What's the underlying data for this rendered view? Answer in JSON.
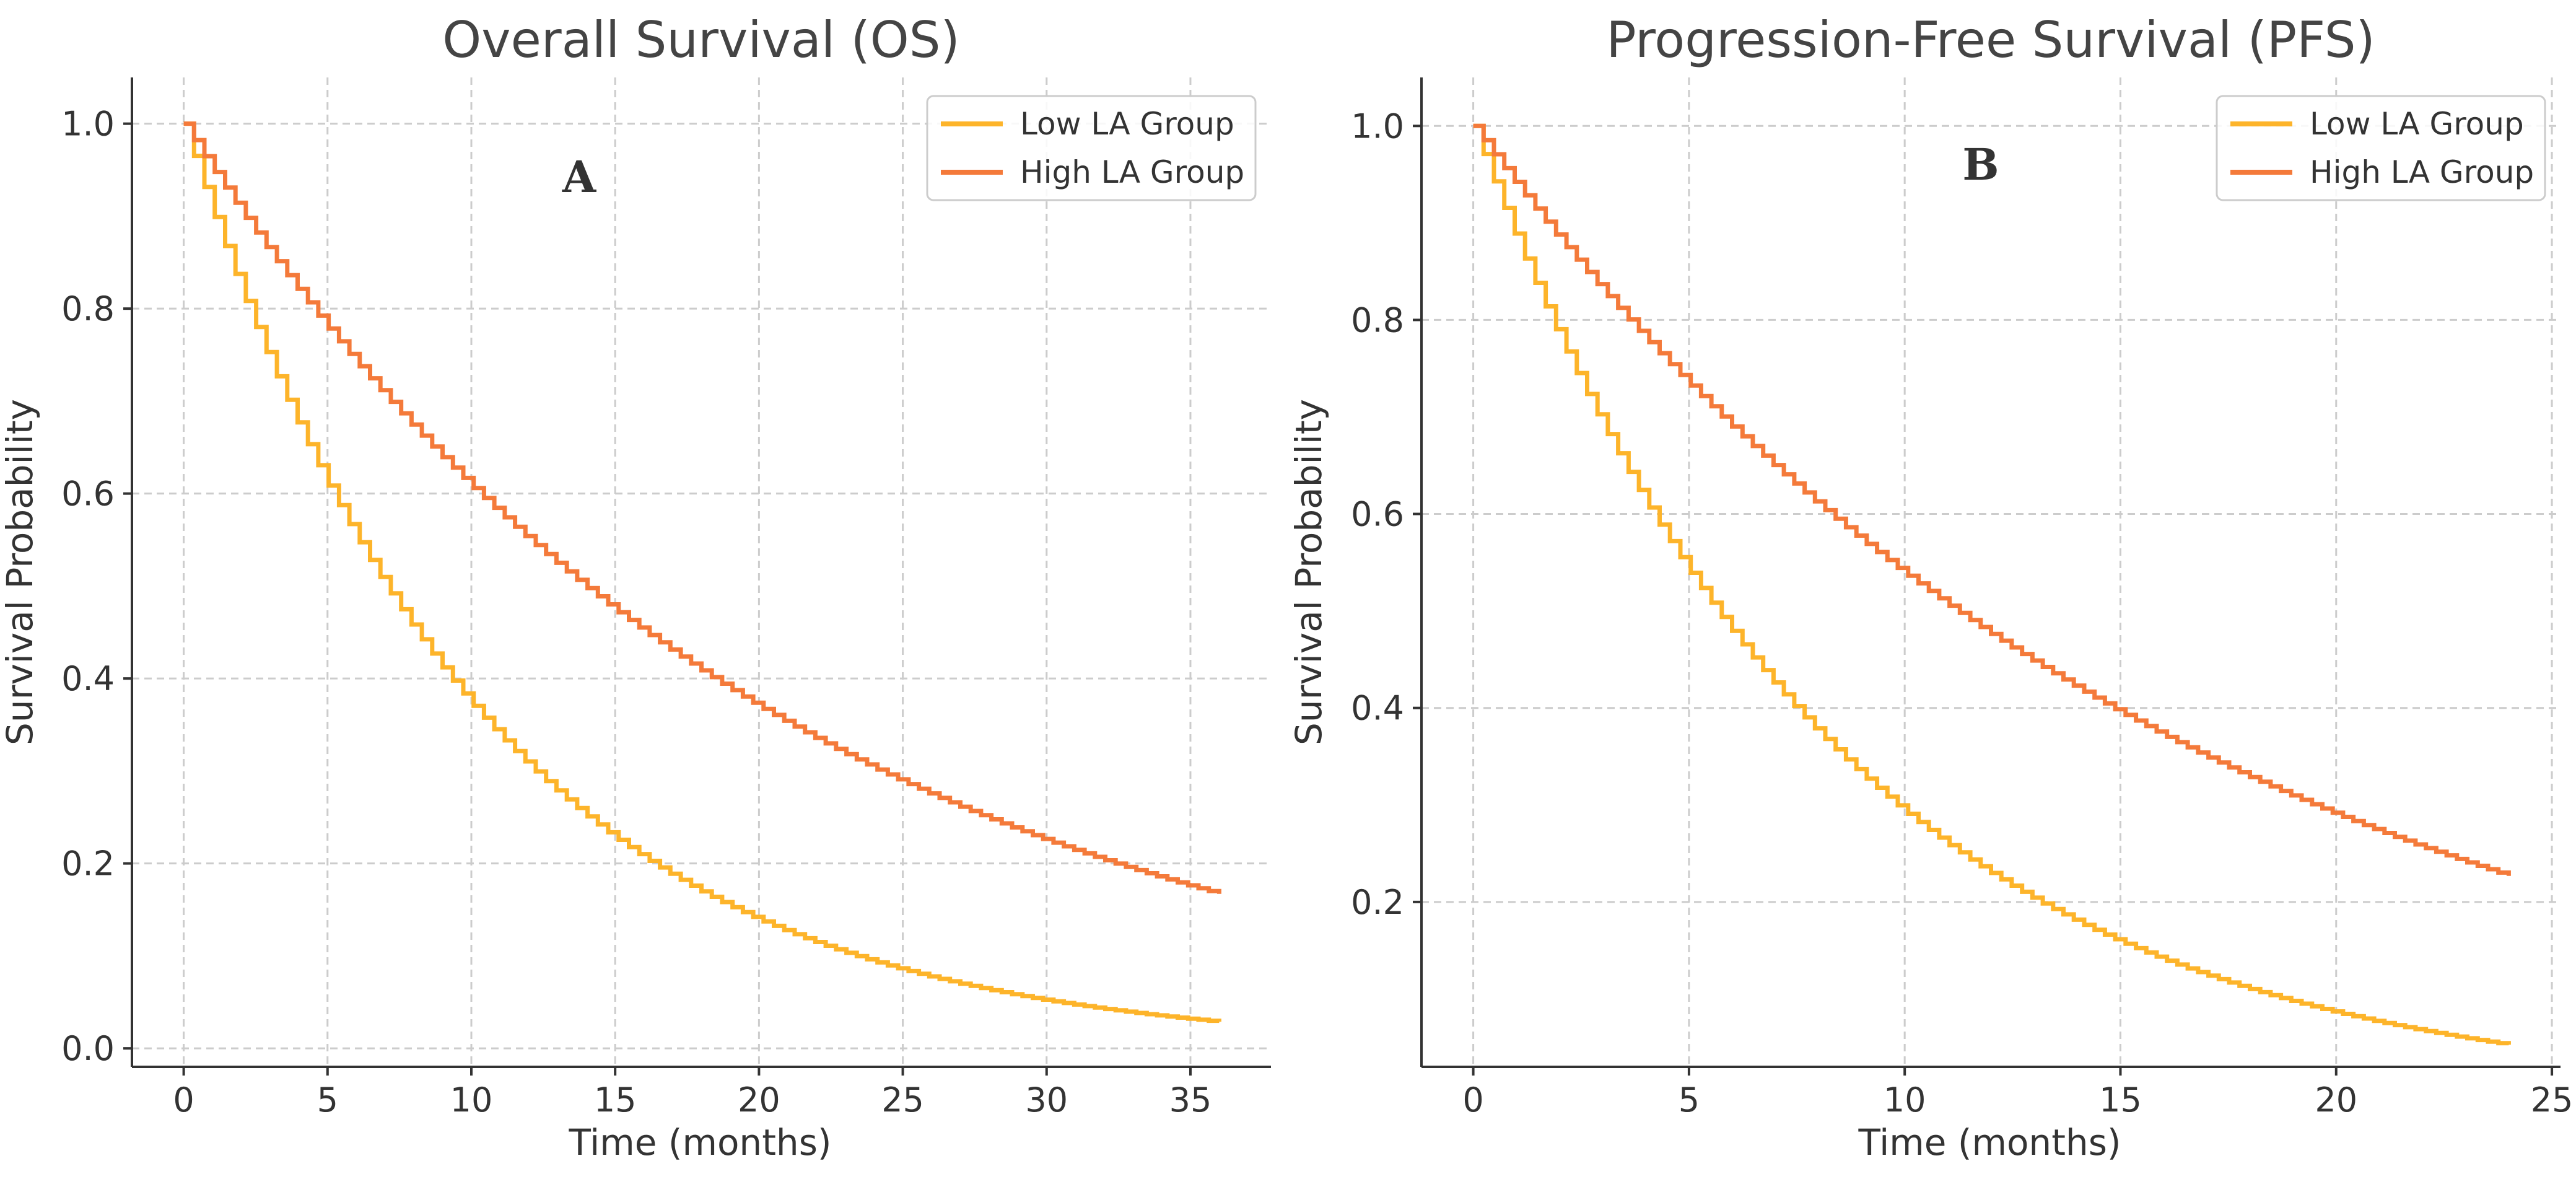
{
  "chart_data": [
    {
      "type": "line",
      "title": "Overall Survival (OS)",
      "xlabel": "Time (months)",
      "ylabel": "Survival Probability",
      "panel_label": "A",
      "xlim": [
        -1.8,
        37.8
      ],
      "ylim": [
        -0.02,
        1.05
      ],
      "x_ticks": [
        0,
        5,
        10,
        15,
        20,
        25,
        30,
        35
      ],
      "y_ticks": [
        0.0,
        0.2,
        0.4,
        0.6,
        0.8,
        1.0
      ],
      "y_tick_labels": [
        "0.0",
        "0.2",
        "0.4",
        "0.6",
        "0.8",
        "1.0"
      ],
      "grid": true,
      "legend_position": "top-right",
      "series": [
        {
          "name": "Low LA Group",
          "color": "#FDB42A",
          "model": "exponential",
          "x_max": 36,
          "step": 0.36,
          "hazard": 0.0985,
          "end_value": 0.029
        },
        {
          "name": "High LA Group",
          "color": "#F47A3A",
          "model": "exponential",
          "x_max": 36,
          "step": 0.36,
          "hazard": 0.0497,
          "end_value": 0.167
        }
      ]
    },
    {
      "type": "line",
      "title": "Progression-Free Survival (PFS)",
      "xlabel": "Time (months)",
      "ylabel": "Survival Probability",
      "panel_label": "B",
      "xlim": [
        -1.2,
        25.2
      ],
      "ylim": [
        0.03,
        1.05
      ],
      "x_ticks": [
        0,
        5,
        10,
        15,
        20,
        25
      ],
      "y_ticks": [
        0.2,
        0.4,
        0.6,
        0.8,
        1.0
      ],
      "y_tick_labels": [
        "0.2",
        "0.4",
        "0.6",
        "0.8",
        "1.0"
      ],
      "grid": true,
      "legend_position": "top-right",
      "series": [
        {
          "name": "Low LA Group",
          "color": "#FDB42A",
          "model": "exponential",
          "x_max": 24,
          "step": 0.24,
          "hazard": 0.1225,
          "end_value": 0.053
        },
        {
          "name": "High LA Group",
          "color": "#F47A3A",
          "model": "exponential",
          "x_max": 24,
          "step": 0.24,
          "hazard": 0.0618,
          "end_value": 0.227
        }
      ]
    }
  ]
}
